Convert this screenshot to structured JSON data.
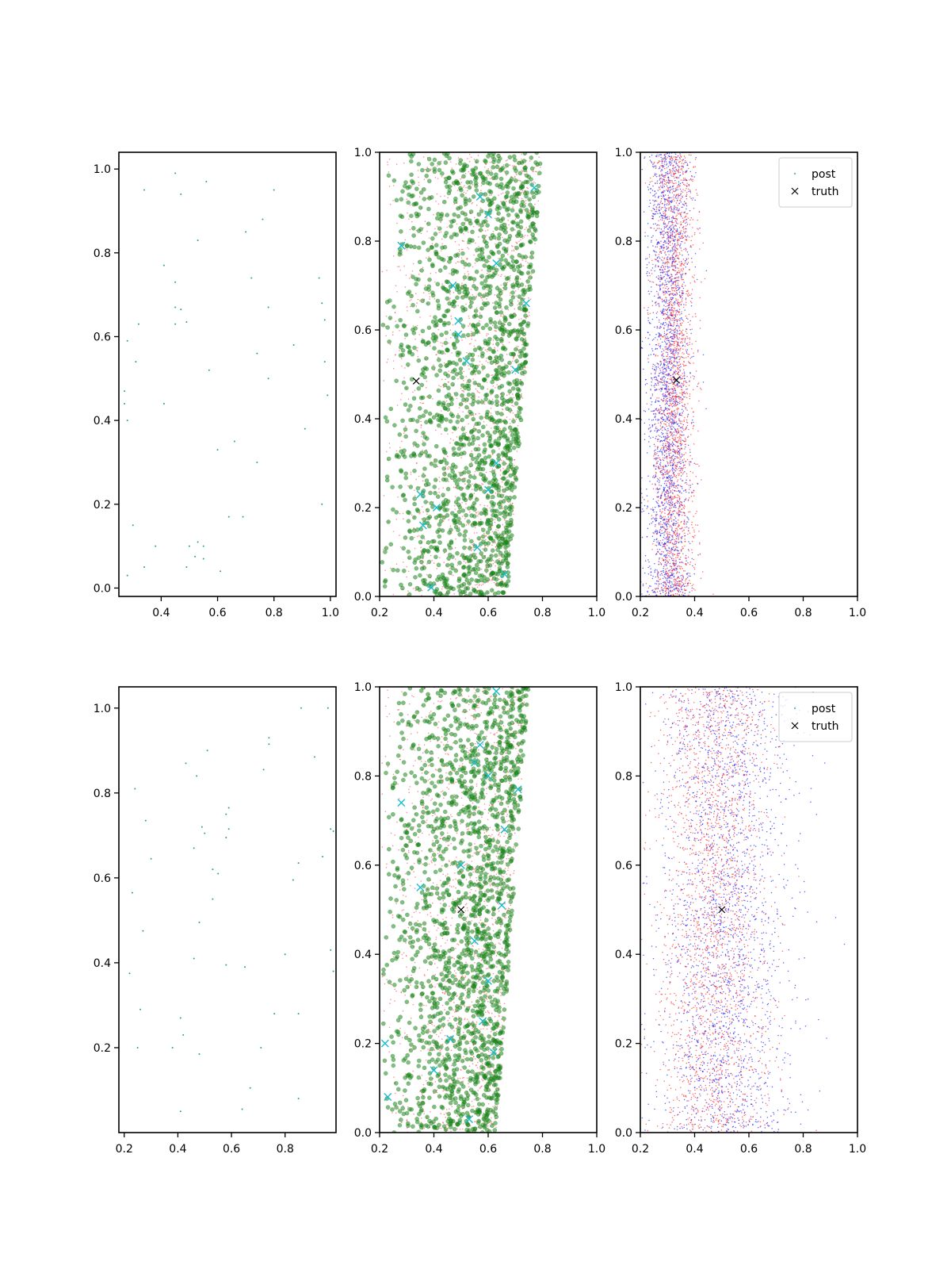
{
  "chart_data": [
    {
      "type": "scatter",
      "panel": "row1-col1",
      "xlim": [
        0.25,
        1.02
      ],
      "ylim": [
        -0.02,
        1.04
      ],
      "xticks": [
        "0.4",
        "0.6",
        "0.8",
        "1.0"
      ],
      "xtick_values": [
        0.4,
        0.6,
        0.8,
        1.0
      ],
      "yticks": [
        "0.0",
        "0.2",
        "0.4",
        "0.6",
        "0.8",
        "1.0"
      ],
      "ytick_values": [
        0.0,
        0.2,
        0.4,
        0.6,
        0.8,
        1.0
      ],
      "grid": false,
      "series": [
        {
          "marker": "dot",
          "color": "#2ca089",
          "points": [
            [
              0.45,
              0.99
            ],
            [
              0.56,
              0.97
            ],
            [
              0.34,
              0.95
            ],
            [
              0.47,
              0.94
            ],
            [
              0.8,
              0.95
            ],
            [
              0.76,
              0.88
            ],
            [
              0.7,
              0.85
            ],
            [
              0.53,
              0.83
            ],
            [
              0.41,
              0.77
            ],
            [
              0.45,
              0.73
            ],
            [
              0.72,
              0.74
            ],
            [
              0.96,
              0.74
            ],
            [
              0.97,
              0.68
            ],
            [
              0.45,
              0.67
            ],
            [
              0.47,
              0.665
            ],
            [
              0.78,
              0.67
            ],
            [
              0.32,
              0.63
            ],
            [
              0.45,
              0.63
            ],
            [
              0.49,
              0.635
            ],
            [
              0.98,
              0.64
            ],
            [
              0.28,
              0.59
            ],
            [
              0.87,
              0.58
            ],
            [
              0.74,
              0.56
            ],
            [
              0.31,
              0.54
            ],
            [
              0.98,
              0.54
            ],
            [
              0.57,
              0.52
            ],
            [
              0.78,
              0.5
            ],
            [
              0.27,
              0.47
            ],
            [
              0.41,
              0.44
            ],
            [
              0.99,
              0.46
            ],
            [
              0.27,
              0.44
            ],
            [
              0.28,
              0.4
            ],
            [
              0.91,
              0.38
            ],
            [
              0.66,
              0.35
            ],
            [
              0.6,
              0.33
            ],
            [
              0.74,
              0.3
            ],
            [
              0.97,
              0.2
            ],
            [
              0.64,
              0.17
            ],
            [
              0.69,
              0.17
            ],
            [
              0.3,
              0.15
            ],
            [
              0.38,
              0.1
            ],
            [
              0.53,
              0.11
            ],
            [
              0.55,
              0.1
            ],
            [
              0.52,
              0.075
            ],
            [
              0.55,
              0.07
            ],
            [
              0.5,
              0.1
            ],
            [
              0.34,
              0.05
            ],
            [
              0.49,
              0.05
            ],
            [
              0.61,
              0.04
            ],
            [
              0.28,
              0.03
            ]
          ]
        }
      ]
    },
    {
      "type": "scatter",
      "panel": "row1-col2",
      "xlim": [
        0.2,
        1.0
      ],
      "ylim": [
        0.0,
        1.0
      ],
      "xticks": [
        "0.2",
        "0.4",
        "0.6",
        "0.8",
        "1.0"
      ],
      "xtick_values": [
        0.2,
        0.4,
        0.6,
        0.8,
        1.0
      ],
      "yticks": [
        "0.0",
        "0.2",
        "0.4",
        "0.6",
        "0.8",
        "1.0"
      ],
      "ytick_values": [
        0.0,
        0.2,
        0.4,
        0.6,
        0.8,
        1.0
      ],
      "grid": false,
      "cloud": {
        "x_left": 0.2,
        "x_right_bottom": 0.67,
        "x_right_top": 0.8,
        "green_count": 1700,
        "red_count": 1500
      },
      "colors": {
        "green": "#1a8a1a",
        "red": "#ff3333",
        "cyan": "#17becf"
      },
      "truth": [
        0.335,
        0.485
      ],
      "cyan_x": [
        [
          0.28,
          0.79
        ],
        [
          0.57,
          0.9
        ],
        [
          0.6,
          0.86
        ],
        [
          0.77,
          0.92
        ],
        [
          0.63,
          0.75
        ],
        [
          0.47,
          0.7
        ],
        [
          0.49,
          0.62
        ],
        [
          0.49,
          0.59
        ],
        [
          0.74,
          0.66
        ],
        [
          0.52,
          0.53
        ],
        [
          0.7,
          0.51
        ],
        [
          0.35,
          0.23
        ],
        [
          0.36,
          0.16
        ],
        [
          0.41,
          0.2
        ],
        [
          0.56,
          0.11
        ],
        [
          0.39,
          0.02
        ],
        [
          0.6,
          0.24
        ],
        [
          0.63,
          0.3
        ],
        [
          0.66,
          0.05
        ]
      ]
    },
    {
      "type": "scatter",
      "panel": "row1-col3",
      "xlim": [
        0.2,
        1.0
      ],
      "ylim": [
        0.0,
        1.0
      ],
      "xticks": [
        "0.2",
        "0.4",
        "0.6",
        "0.8",
        "1.0"
      ],
      "xtick_values": [
        0.2,
        0.4,
        0.6,
        0.8,
        1.0
      ],
      "yticks": [
        "0.0",
        "0.2",
        "0.4",
        "0.6",
        "0.8",
        "1.0"
      ],
      "ytick_values": [
        0.0,
        0.2,
        0.4,
        0.6,
        0.8,
        1.0
      ],
      "grid": false,
      "legend": {
        "placement": "top-right",
        "entries": [
          "post",
          "truth"
        ]
      },
      "cloud": {
        "blue_x": [
          0.2,
          0.4
        ],
        "red_x": [
          0.23,
          0.42
        ],
        "count_each": 2200
      },
      "colors": {
        "blue": "#1f1fff",
        "red": "#ff2a2a",
        "post": "#6fb8c9"
      },
      "truth": [
        0.333,
        0.487
      ]
    },
    {
      "type": "scatter",
      "panel": "row2-col1",
      "xlim": [
        0.18,
        0.99
      ],
      "ylim": [
        0.0,
        1.05
      ],
      "xticks": [
        "0.2",
        "0.4",
        "0.6",
        "0.8"
      ],
      "xtick_values": [
        0.2,
        0.4,
        0.6,
        0.8
      ],
      "yticks": [
        "0.2",
        "0.4",
        "0.6",
        "0.8",
        "1.0"
      ],
      "ytick_values": [
        0.2,
        0.4,
        0.6,
        0.8,
        1.0
      ],
      "grid": false,
      "series": [
        {
          "marker": "dot",
          "color": "#2ca089",
          "points": [
            [
              0.86,
              1.0
            ],
            [
              0.96,
              1.0
            ],
            [
              0.74,
              0.93
            ],
            [
              0.74,
              0.915
            ],
            [
              0.51,
              0.9
            ],
            [
              0.91,
              0.885
            ],
            [
              0.43,
              0.87
            ],
            [
              0.72,
              0.855
            ],
            [
              0.47,
              0.84
            ],
            [
              0.24,
              0.81
            ],
            [
              0.59,
              0.765
            ],
            [
              0.58,
              0.75
            ],
            [
              0.28,
              0.735
            ],
            [
              0.49,
              0.72
            ],
            [
              0.59,
              0.715
            ],
            [
              0.97,
              0.715
            ],
            [
              0.98,
              0.71
            ],
            [
              0.5,
              0.705
            ],
            [
              0.58,
              0.695
            ],
            [
              0.46,
              0.67
            ],
            [
              0.3,
              0.645
            ],
            [
              0.94,
              0.65
            ],
            [
              0.85,
              0.635
            ],
            [
              0.53,
              0.62
            ],
            [
              0.55,
              0.61
            ],
            [
              0.83,
              0.595
            ],
            [
              0.23,
              0.565
            ],
            [
              0.53,
              0.55
            ],
            [
              0.48,
              0.495
            ],
            [
              0.27,
              0.475
            ],
            [
              0.8,
              0.42
            ],
            [
              0.46,
              0.41
            ],
            [
              0.97,
              0.43
            ],
            [
              0.58,
              0.395
            ],
            [
              0.65,
              0.39
            ],
            [
              0.22,
              0.375
            ],
            [
              0.98,
              0.38
            ],
            [
              0.26,
              0.29
            ],
            [
              0.76,
              0.28
            ],
            [
              0.85,
              0.28
            ],
            [
              0.41,
              0.27
            ],
            [
              0.42,
              0.23
            ],
            [
              0.25,
              0.2
            ],
            [
              0.38,
              0.2
            ],
            [
              0.71,
              0.2
            ],
            [
              0.48,
              0.185
            ],
            [
              0.67,
              0.105
            ],
            [
              0.85,
              0.08
            ],
            [
              0.64,
              0.055
            ],
            [
              0.41,
              0.05
            ]
          ]
        }
      ]
    },
    {
      "type": "scatter",
      "panel": "row2-col2",
      "xlim": [
        0.2,
        1.0
      ],
      "ylim": [
        0.0,
        1.0
      ],
      "xticks": [
        "0.2",
        "0.4",
        "0.6",
        "0.8",
        "1.0"
      ],
      "xtick_values": [
        0.2,
        0.4,
        0.6,
        0.8,
        1.0
      ],
      "yticks": [
        "0.0",
        "0.2",
        "0.4",
        "0.6",
        "0.8",
        "1.0"
      ],
      "ytick_values": [
        0.0,
        0.2,
        0.4,
        0.6,
        0.8,
        1.0
      ],
      "grid": false,
      "cloud": {
        "x_left": 0.2,
        "x_right_bottom": 0.63,
        "x_right_top": 0.75,
        "green_count": 1700,
        "red_count": 1500
      },
      "colors": {
        "green": "#1a8a1a",
        "red": "#ff3333",
        "cyan": "#17becf"
      },
      "truth": [
        0.5,
        0.5
      ],
      "cyan_x": [
        [
          0.28,
          0.74
        ],
        [
          0.71,
          0.77
        ],
        [
          0.63,
          0.99
        ],
        [
          0.55,
          0.83
        ],
        [
          0.57,
          0.87
        ],
        [
          0.6,
          0.8
        ],
        [
          0.66,
          0.68
        ],
        [
          0.35,
          0.55
        ],
        [
          0.5,
          0.6
        ],
        [
          0.55,
          0.43
        ],
        [
          0.65,
          0.51
        ],
        [
          0.22,
          0.2
        ],
        [
          0.23,
          0.08
        ],
        [
          0.4,
          0.14
        ],
        [
          0.46,
          0.21
        ],
        [
          0.58,
          0.25
        ],
        [
          0.62,
          0.18
        ],
        [
          0.53,
          0.03
        ],
        [
          0.6,
          0.34
        ]
      ]
    },
    {
      "type": "scatter",
      "panel": "row2-col3",
      "xlim": [
        0.2,
        1.0
      ],
      "ylim": [
        0.0,
        1.0
      ],
      "xticks": [
        "0.2",
        "0.4",
        "0.6",
        "0.8",
        "1.0"
      ],
      "xtick_values": [
        0.2,
        0.4,
        0.6,
        0.8,
        1.0
      ],
      "yticks": [
        "0.0",
        "0.2",
        "0.4",
        "0.6",
        "0.8",
        "1.0"
      ],
      "ytick_values": [
        0.0,
        0.2,
        0.4,
        0.6,
        0.8,
        1.0
      ],
      "grid": false,
      "legend": {
        "placement": "top-right",
        "entries": [
          "post",
          "truth"
        ]
      },
      "cloud": {
        "blue_x": [
          0.2,
          0.82
        ],
        "red_x": [
          0.22,
          0.72
        ],
        "count_each": 2200
      },
      "colors": {
        "blue": "#1f1fff",
        "red": "#ff2a2a",
        "post": "#6fb8c9"
      },
      "truth": [
        0.5,
        0.5
      ]
    }
  ]
}
